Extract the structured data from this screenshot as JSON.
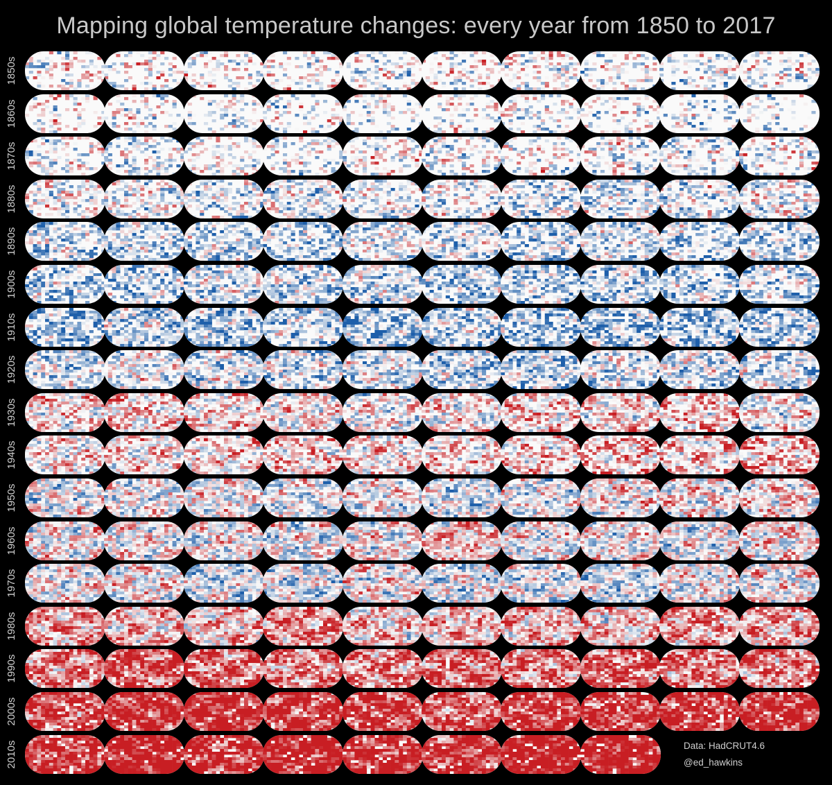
{
  "title": "Mapping global temperature changes: every year from 1850 to 2017",
  "credits": {
    "data": "Data: HadCRUT4.6",
    "author": "@ed_hawkins"
  },
  "colors": {
    "background": "#000000",
    "warm": "#d7301f",
    "cool": "#2c6fb5",
    "neutral": "#f7f7f7"
  },
  "chart_data": {
    "type": "heatmap",
    "title": "Mapping global temperature changes: every year from 1850 to 2017",
    "first_year": 1850,
    "last_year": 2017,
    "decades": [
      "1850s",
      "1860s",
      "1870s",
      "1880s",
      "1890s",
      "1900s",
      "1910s",
      "1920s",
      "1930s",
      "1940s",
      "1950s",
      "1960s",
      "1970s",
      "1980s",
      "1990s",
      "2000s",
      "2010s"
    ],
    "years_per_row": 10,
    "warmth_by_decade": [
      -0.05,
      -0.05,
      -0.05,
      -0.15,
      -0.25,
      -0.25,
      -0.35,
      -0.15,
      0.1,
      0.2,
      0.0,
      0.05,
      -0.05,
      0.3,
      0.5,
      0.65,
      0.8
    ],
    "data_coverage_by_decade": [
      0.35,
      0.3,
      0.4,
      0.55,
      0.6,
      0.65,
      0.7,
      0.72,
      0.75,
      0.72,
      0.85,
      0.9,
      0.92,
      0.93,
      0.94,
      0.95,
      0.95
    ],
    "source": "Data: HadCRUT4.6"
  }
}
